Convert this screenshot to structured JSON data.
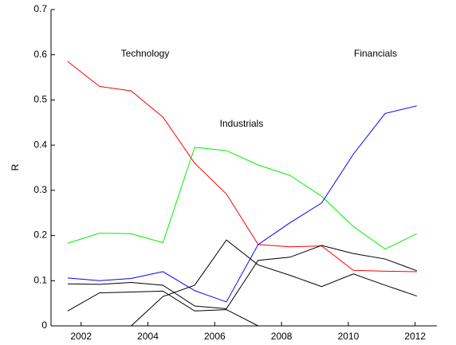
{
  "chart_data": {
    "type": "line",
    "ylabel": "R",
    "annotations": [
      "Technology",
      "Industrials",
      "Financials"
    ],
    "x": [
      2001.6,
      2002.55,
      2003.5,
      2004.45,
      2005.4,
      2006.35,
      2007.3,
      2008.25,
      2009.2,
      2010.15,
      2011.1,
      2012.05
    ],
    "series": [
      {
        "color": "#ff0000",
        "values": [
          0.585,
          0.53,
          0.52,
          0.462,
          0.36,
          0.292,
          0.18,
          0.175,
          0.177,
          0.123,
          0.121,
          0.12
        ]
      },
      {
        "color": "#00ee00",
        "values": [
          0.183,
          0.205,
          0.204,
          0.184,
          0.395,
          0.388,
          0.356,
          0.333,
          0.287,
          0.22,
          0.17,
          0.204
        ]
      },
      {
        "color": "#0000ff",
        "values": [
          0.106,
          0.1,
          0.105,
          0.12,
          0.078,
          0.053,
          0.18,
          0.228,
          0.272,
          0.38,
          0.47,
          0.487
        ]
      },
      {
        "color": "#000000",
        "values": [
          0.093,
          0.092,
          0.096,
          0.09,
          0.044,
          0.038,
          0.145,
          0.152,
          0.178,
          0.16,
          0.148,
          0.122
        ]
      },
      {
        "color": "#000000",
        "values": [
          0.033,
          0.073,
          0.075,
          0.077,
          0.033,
          0.036,
          0,
          null,
          null,
          null,
          null,
          null
        ]
      },
      {
        "color": "#000000",
        "values": [
          null,
          null,
          0,
          0.065,
          0.09,
          0.19,
          0.135,
          0.112,
          0.087,
          0.115,
          0.09,
          0.066
        ]
      }
    ],
    "xlim": [
      2001.1,
      2012.65
    ],
    "xticks": [
      2002,
      2004,
      2006,
      2008,
      2010,
      2012
    ],
    "ylim": [
      0,
      0.7
    ],
    "yticks": [
      0,
      0.1,
      0.2,
      0.3,
      0.4,
      0.5,
      0.6,
      0.7
    ],
    "grid": false
  }
}
